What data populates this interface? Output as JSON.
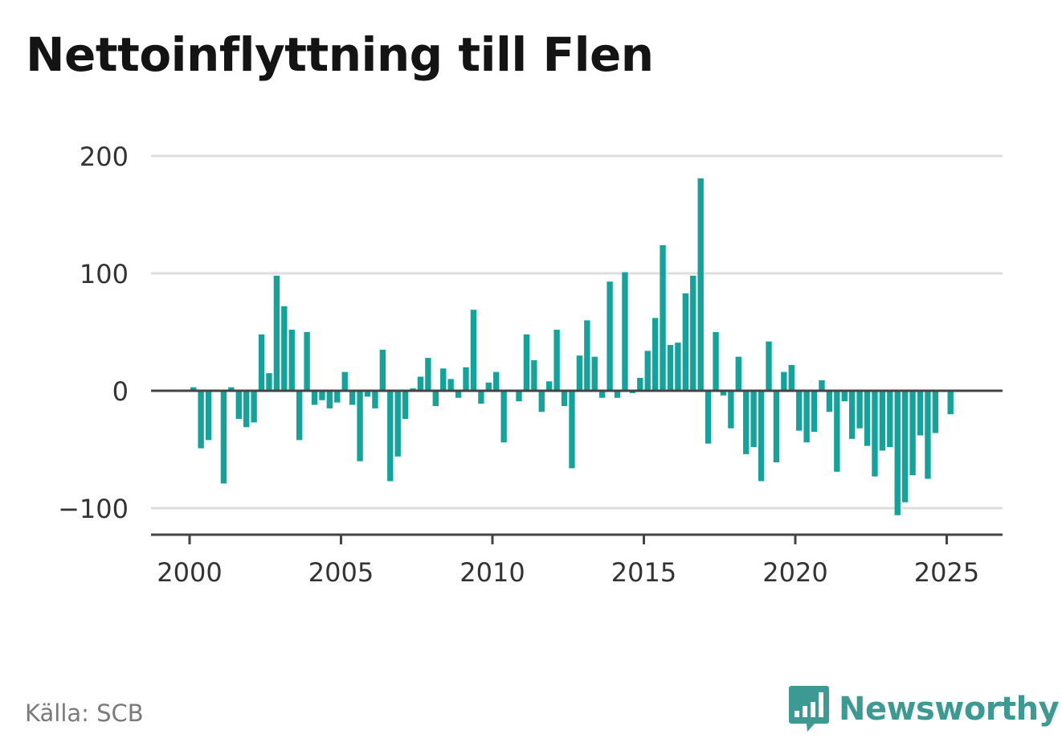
{
  "title": "Nettoinflyttning till Flen",
  "source": "Källa: SCB",
  "brand": {
    "name": "Newsworthy",
    "icon": "newsworthy-logo-icon",
    "color": "#3c9a93"
  },
  "chart_data": {
    "type": "bar",
    "title": "Nettoinflyttning till Flen",
    "xlabel": "",
    "ylabel": "",
    "bar_color": "#13a39a",
    "grid": true,
    "ylim": [
      -120,
      200
    ],
    "yticks": [
      200,
      100,
      0,
      -100
    ],
    "ytick_labels": [
      "200",
      "100",
      "0",
      "−100"
    ],
    "xlim": [
      1999.5,
      2026.75
    ],
    "xticks": [
      2000,
      2005,
      2010,
      2015,
      2020,
      2025
    ],
    "xtick_labels": [
      "2000",
      "2005",
      "2010",
      "2015",
      "2020",
      "2025"
    ],
    "x": [
      2000.125,
      2000.375,
      2000.625,
      2000.875,
      2001.125,
      2001.375,
      2001.625,
      2001.875,
      2002.125,
      2002.375,
      2002.625,
      2002.875,
      2003.125,
      2003.375,
      2003.625,
      2003.875,
      2004.125,
      2004.375,
      2004.625,
      2004.875,
      2005.125,
      2005.375,
      2005.625,
      2005.875,
      2006.125,
      2006.375,
      2006.625,
      2006.875,
      2007.125,
      2007.375,
      2007.625,
      2007.875,
      2008.125,
      2008.375,
      2008.625,
      2008.875,
      2009.125,
      2009.375,
      2009.625,
      2009.875,
      2010.125,
      2010.375,
      2010.625,
      2010.875,
      2011.125,
      2011.375,
      2011.625,
      2011.875,
      2012.125,
      2012.375,
      2012.625,
      2012.875,
      2013.125,
      2013.375,
      2013.625,
      2013.875,
      2014.125,
      2014.375,
      2014.625,
      2014.875,
      2015.125,
      2015.375,
      2015.625,
      2015.875,
      2016.125,
      2016.375,
      2016.625,
      2016.875,
      2017.125,
      2017.375,
      2017.625,
      2017.875,
      2018.125,
      2018.375,
      2018.625,
      2018.875,
      2019.125,
      2019.375,
      2019.625,
      2019.875,
      2020.125,
      2020.375,
      2020.625,
      2020.875,
      2021.125,
      2021.375,
      2021.625,
      2021.875,
      2022.125,
      2022.375,
      2022.625,
      2022.875,
      2023.125,
      2023.375,
      2023.625,
      2023.875,
      2024.125,
      2024.375,
      2024.625,
      2024.875,
      2025.125,
      2025.375
    ],
    "values": [
      3,
      -49,
      -42,
      0,
      -79,
      3,
      -24,
      -31,
      -27,
      48,
      15,
      98,
      72,
      52,
      -42,
      50,
      -12,
      -8,
      -15,
      -10,
      16,
      -12,
      -60,
      -5,
      -15,
      35,
      -77,
      -56,
      -24,
      2,
      12,
      28,
      -13,
      19,
      10,
      -6,
      20,
      69,
      -11,
      7,
      16,
      -44,
      0,
      -9,
      48,
      26,
      -18,
      8,
      52,
      -13,
      -66,
      30,
      60,
      29,
      -6,
      93,
      -6,
      101,
      -2,
      11,
      34,
      62,
      124,
      39,
      41,
      83,
      98,
      181,
      -45,
      50,
      -4,
      -32,
      29,
      -54,
      -48,
      -77,
      42,
      -61,
      16,
      22,
      -34,
      -44,
      -35,
      9,
      -18,
      -69,
      -9,
      -41,
      -32,
      -47,
      -73,
      -51,
      -48,
      -106,
      -95,
      -72,
      -38,
      -75,
      -36,
      0,
      -20,
      0
    ]
  }
}
